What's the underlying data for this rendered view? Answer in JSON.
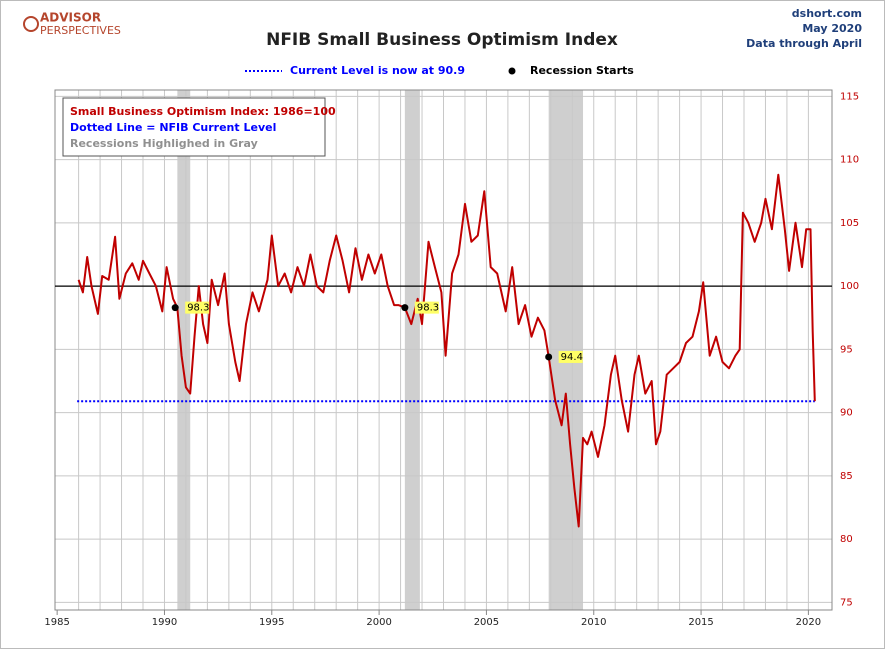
{
  "chart_data": {
    "type": "line",
    "title": "NFIB Small Business Optimism Index",
    "logo": [
      "ADVISOR",
      "PERSPECTIVES"
    ],
    "source": [
      "dshort.com",
      "May 2020",
      "Data through April"
    ],
    "legend": {
      "current_level": "Current Level is now at 90.9",
      "recession": "Recession Starts"
    },
    "notes": [
      {
        "text": "Small Business Optimism Index: 1986=100",
        "color": "#c00000"
      },
      {
        "text": "Dotted Line = NFIB Current Level",
        "color": "#0000ff"
      },
      {
        "text": "Recessions Highlighed in Gray",
        "color": "#909090"
      }
    ],
    "xlim": [
      1984.9,
      2021.1
    ],
    "ylim": [
      74.4,
      115.5
    ],
    "xticks": [
      1985,
      1990,
      1995,
      2000,
      2005,
      2010,
      2015,
      2020
    ],
    "yticks": [
      75,
      80,
      85,
      90,
      95,
      100,
      105,
      110,
      115
    ],
    "x_gridlines": [
      1986,
      1987,
      1988,
      1989,
      1990,
      1991,
      1992,
      1993,
      1994,
      1995,
      1996,
      1997,
      1998,
      1999,
      2000,
      2001,
      2002,
      2003,
      2004,
      2005,
      2006,
      2007,
      2008,
      2009,
      2010,
      2011,
      2012,
      2013,
      2014,
      2015,
      2016,
      2017,
      2018,
      2019,
      2020
    ],
    "baseline": 100,
    "current_level": 90.9,
    "recessions": [
      [
        1990.6,
        1991.2
      ],
      [
        2001.2,
        2001.9
      ],
      [
        2007.9,
        2009.5
      ]
    ],
    "recession_starts": {
      "x": [
        1990.5,
        2001.2,
        2007.9
      ],
      "values": [
        98.3,
        98.3,
        94.4
      ]
    },
    "series": [
      {
        "name": "Small Business Optimism Index",
        "color": "#c00000",
        "x": [
          1986.0,
          1986.2,
          1986.4,
          1986.6,
          1986.9,
          1987.1,
          1987.4,
          1987.7,
          1987.9,
          1988.2,
          1988.5,
          1988.8,
          1989.0,
          1989.3,
          1989.6,
          1989.9,
          1990.1,
          1990.4,
          1990.6,
          1990.8,
          1991.0,
          1991.2,
          1991.4,
          1991.6,
          1991.8,
          1992.0,
          1992.2,
          1992.5,
          1992.8,
          1993.0,
          1993.3,
          1993.5,
          1993.8,
          1994.1,
          1994.4,
          1994.8,
          1995.0,
          1995.3,
          1995.6,
          1995.9,
          1996.2,
          1996.5,
          1996.8,
          1997.1,
          1997.4,
          1997.7,
          1998.0,
          1998.3,
          1998.6,
          1998.9,
          1999.2,
          1999.5,
          1999.8,
          2000.1,
          2000.4,
          2000.7,
          2000.9,
          2001.2,
          2001.5,
          2001.8,
          2002.0,
          2002.3,
          2002.6,
          2002.9,
          2003.1,
          2003.4,
          2003.7,
          2004.0,
          2004.3,
          2004.6,
          2004.9,
          2005.2,
          2005.5,
          2005.9,
          2006.2,
          2006.5,
          2006.8,
          2007.1,
          2007.4,
          2007.7,
          2007.9,
          2008.2,
          2008.5,
          2008.7,
          2008.9,
          2009.1,
          2009.3,
          2009.5,
          2009.7,
          2009.9,
          2010.2,
          2010.5,
          2010.8,
          2011.0,
          2011.3,
          2011.6,
          2011.9,
          2012.1,
          2012.4,
          2012.7,
          2012.9,
          2013.1,
          2013.4,
          2013.7,
          2014.0,
          2014.3,
          2014.6,
          2014.9,
          2015.1,
          2015.4,
          2015.7,
          2016.0,
          2016.3,
          2016.6,
          2016.8,
          2016.95,
          2017.2,
          2017.5,
          2017.8,
          2018.0,
          2018.3,
          2018.6,
          2018.9,
          2019.1,
          2019.4,
          2019.7,
          2019.9,
          2020.1,
          2020.2,
          2020.3
        ],
        "values": [
          100.5,
          99.5,
          102.3,
          100,
          97.8,
          100.8,
          100.5,
          103.9,
          99,
          101,
          101.8,
          100.5,
          102,
          101,
          100,
          98,
          101.5,
          99,
          98.3,
          94.5,
          92,
          91.5,
          96,
          100,
          97,
          95.5,
          100.5,
          98.5,
          101,
          97,
          94,
          92.5,
          97,
          99.5,
          98,
          100.5,
          104,
          100,
          101,
          99.5,
          101.5,
          100,
          102.5,
          100,
          99.5,
          102,
          104,
          102,
          99.5,
          103,
          100.5,
          102.5,
          101,
          102.5,
          100,
          98.5,
          98.5,
          98.3,
          97,
          99,
          97,
          103.5,
          101.5,
          99.5,
          94.5,
          101,
          102.5,
          106.5,
          103.5,
          104,
          107.5,
          101.5,
          101,
          98,
          101.5,
          97,
          98.5,
          96,
          97.5,
          96.5,
          94.4,
          91,
          89,
          91.5,
          87.5,
          84,
          81,
          88,
          87.5,
          88.5,
          86.5,
          89,
          93,
          94.5,
          91,
          88.5,
          93,
          94.5,
          91.5,
          92.5,
          87.5,
          88.5,
          93,
          93.5,
          94,
          95.5,
          96,
          98,
          100.3,
          94.5,
          96,
          94,
          93.5,
          94.5,
          95,
          105.8,
          105,
          103.5,
          105,
          106.9,
          104.5,
          108.8,
          104.5,
          101.2,
          105,
          101.5,
          104.5,
          104.5,
          96.4,
          90.9
        ]
      }
    ]
  }
}
